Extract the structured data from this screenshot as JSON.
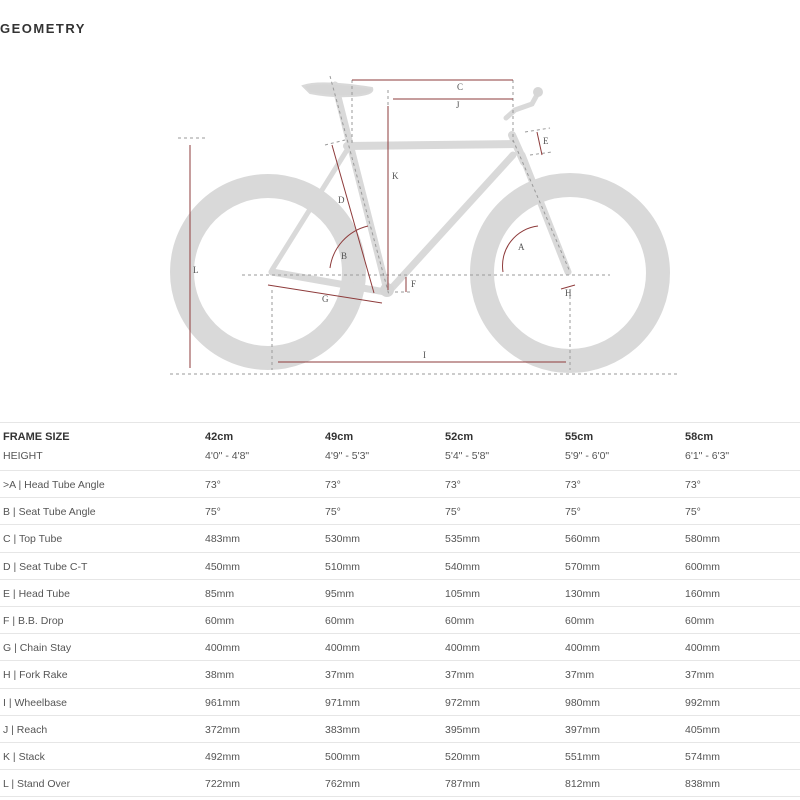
{
  "title": "GEOMETRY",
  "diagram": {
    "labels": [
      "A",
      "B",
      "C",
      "D",
      "E",
      "F",
      "G",
      "H",
      "I",
      "J",
      "K",
      "L"
    ],
    "colors": {
      "frame": "#d6d6d6",
      "dimension": "#8e3b3b",
      "guide": "#9a9a9a"
    }
  },
  "table": {
    "header": {
      "label": "FRAME SIZE",
      "sizes": [
        "42cm",
        "49cm",
        "52cm",
        "55cm",
        "58cm"
      ]
    },
    "height": {
      "label": "HEIGHT",
      "values": [
        "4'0\" - 4'8\"",
        "4'9\" - 5'3\"",
        "5'4\" - 5'8\"",
        "5'9\" - 6'0\"",
        "6'1\" - 6'3\""
      ]
    },
    "rows": [
      {
        "label": ">A | Head Tube Angle",
        "values": [
          "73°",
          "73°",
          "73°",
          "73°",
          "73°"
        ]
      },
      {
        "label": "B | Seat Tube Angle",
        "values": [
          "75°",
          "75°",
          "75°",
          "75°",
          "75°"
        ]
      },
      {
        "label": "C | Top Tube",
        "values": [
          "483mm",
          "530mm",
          "535mm",
          "560mm",
          "580mm"
        ]
      },
      {
        "label": "D | Seat Tube C-T",
        "values": [
          "450mm",
          "510mm",
          "540mm",
          "570mm",
          "600mm"
        ]
      },
      {
        "label": "E | Head Tube",
        "values": [
          "85mm",
          "95mm",
          "105mm",
          "130mm",
          "160mm"
        ]
      },
      {
        "label": "F | B.B. Drop",
        "values": [
          "60mm",
          "60mm",
          "60mm",
          "60mm",
          "60mm"
        ]
      },
      {
        "label": "G | Chain Stay",
        "values": [
          "400mm",
          "400mm",
          "400mm",
          "400mm",
          "400mm"
        ]
      },
      {
        "label": "H | Fork Rake",
        "values": [
          "38mm",
          "37mm",
          "37mm",
          "37mm",
          "37mm"
        ]
      },
      {
        "label": "I | Wheelbase",
        "values": [
          "961mm",
          "971mm",
          "972mm",
          "980mm",
          "992mm"
        ]
      },
      {
        "label": "J | Reach",
        "values": [
          "372mm",
          "383mm",
          "395mm",
          "397mm",
          "405mm"
        ]
      },
      {
        "label": "K | Stack",
        "values": [
          "492mm",
          "500mm",
          "520mm",
          "551mm",
          "574mm"
        ]
      },
      {
        "label": "L | Stand Over",
        "values": [
          "722mm",
          "762mm",
          "787mm",
          "812mm",
          "838mm"
        ]
      }
    ]
  }
}
